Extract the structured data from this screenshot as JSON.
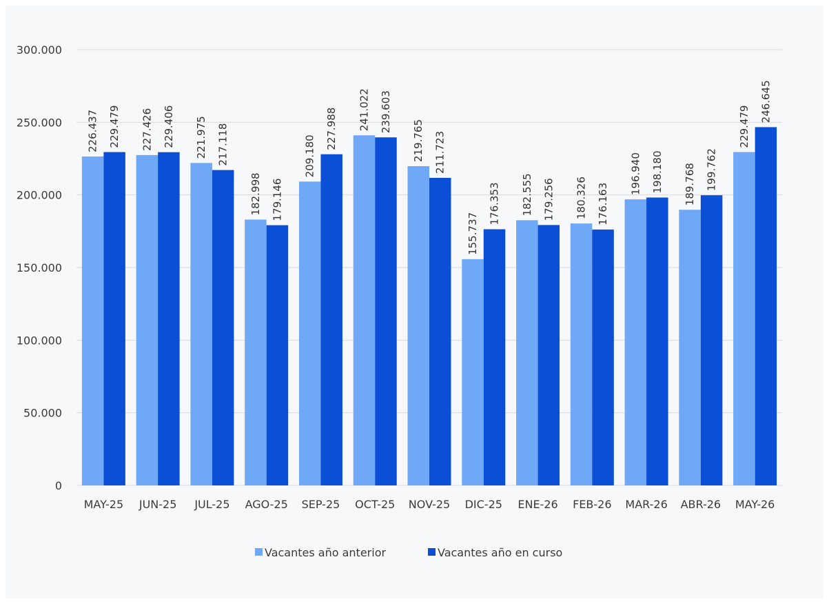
{
  "chart_data": {
    "type": "bar",
    "title": "",
    "xlabel": "",
    "ylabel": "",
    "ylim": [
      0,
      300000
    ],
    "yticks": [
      0,
      50000,
      100000,
      150000,
      200000,
      250000,
      300000
    ],
    "ytick_labels": [
      "0",
      "50.000",
      "100.000",
      "150.000",
      "200.000",
      "250.000",
      "300.000"
    ],
    "grid": "horizontal",
    "legend_position": "bottom",
    "categories": [
      "MAY-25",
      "JUN-25",
      "JUL-25",
      "AGO-25",
      "SEP-25",
      "OCT-25",
      "NOV-25",
      "DIC-25",
      "ENE-26",
      "FEB-26",
      "MAR-26",
      "ABR-26",
      "MAY-26"
    ],
    "series": [
      {
        "name": "Vacantes año anterior",
        "color": "#6fa8f7",
        "values": [
          226437,
          227426,
          221975,
          182998,
          209180,
          241022,
          219765,
          155737,
          182555,
          180326,
          196940,
          189768,
          229479
        ],
        "labels": [
          "226.437",
          "227.426",
          "221.975",
          "182.998",
          "209.180",
          "241.022",
          "219.765",
          "155.737",
          "182.555",
          "180.326",
          "196.940",
          "189.768",
          "229.479"
        ]
      },
      {
        "name": "Vacantes año en curso",
        "color": "#0a4fd6",
        "values": [
          229479,
          229406,
          217118,
          179146,
          227988,
          239603,
          211723,
          176353,
          179256,
          176163,
          198180,
          199762,
          246645
        ],
        "labels": [
          "229.479",
          "229.406",
          "217.118",
          "179.146",
          "227.988",
          "239.603",
          "211.723",
          "176.353",
          "179.256",
          "176.163",
          "198.180",
          "199.762",
          "246.645"
        ]
      }
    ]
  }
}
